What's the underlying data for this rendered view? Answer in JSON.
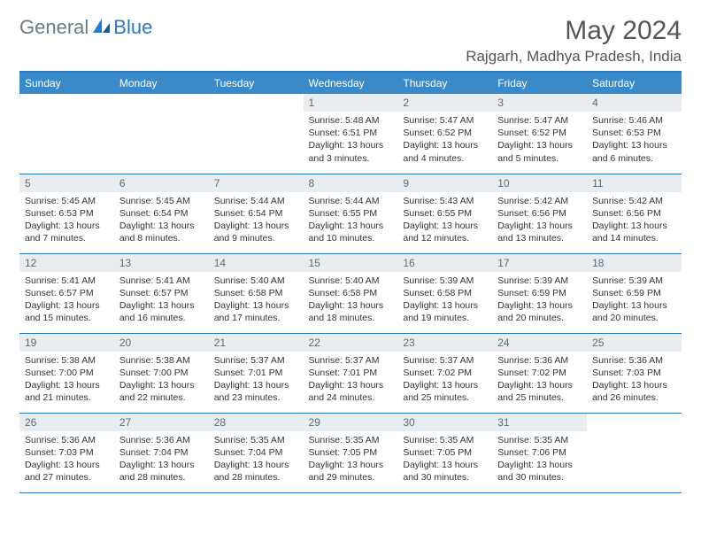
{
  "brand": {
    "general": "General",
    "blue": "Blue"
  },
  "title": "May 2024",
  "location": "Rajgarh, Madhya Pradesh, India",
  "header_color": "#3a8ac9",
  "border_color": "#2b79bf",
  "daynum_bg": "#e9edef",
  "weekdays": [
    "Sunday",
    "Monday",
    "Tuesday",
    "Wednesday",
    "Thursday",
    "Friday",
    "Saturday"
  ],
  "weeks": [
    [
      null,
      null,
      null,
      {
        "n": "1",
        "sr": "Sunrise: 5:48 AM",
        "ss": "Sunset: 6:51 PM",
        "d1": "Daylight: 13 hours",
        "d2": "and 3 minutes."
      },
      {
        "n": "2",
        "sr": "Sunrise: 5:47 AM",
        "ss": "Sunset: 6:52 PM",
        "d1": "Daylight: 13 hours",
        "d2": "and 4 minutes."
      },
      {
        "n": "3",
        "sr": "Sunrise: 5:47 AM",
        "ss": "Sunset: 6:52 PM",
        "d1": "Daylight: 13 hours",
        "d2": "and 5 minutes."
      },
      {
        "n": "4",
        "sr": "Sunrise: 5:46 AM",
        "ss": "Sunset: 6:53 PM",
        "d1": "Daylight: 13 hours",
        "d2": "and 6 minutes."
      }
    ],
    [
      {
        "n": "5",
        "sr": "Sunrise: 5:45 AM",
        "ss": "Sunset: 6:53 PM",
        "d1": "Daylight: 13 hours",
        "d2": "and 7 minutes."
      },
      {
        "n": "6",
        "sr": "Sunrise: 5:45 AM",
        "ss": "Sunset: 6:54 PM",
        "d1": "Daylight: 13 hours",
        "d2": "and 8 minutes."
      },
      {
        "n": "7",
        "sr": "Sunrise: 5:44 AM",
        "ss": "Sunset: 6:54 PM",
        "d1": "Daylight: 13 hours",
        "d2": "and 9 minutes."
      },
      {
        "n": "8",
        "sr": "Sunrise: 5:44 AM",
        "ss": "Sunset: 6:55 PM",
        "d1": "Daylight: 13 hours",
        "d2": "and 10 minutes."
      },
      {
        "n": "9",
        "sr": "Sunrise: 5:43 AM",
        "ss": "Sunset: 6:55 PM",
        "d1": "Daylight: 13 hours",
        "d2": "and 12 minutes."
      },
      {
        "n": "10",
        "sr": "Sunrise: 5:42 AM",
        "ss": "Sunset: 6:56 PM",
        "d1": "Daylight: 13 hours",
        "d2": "and 13 minutes."
      },
      {
        "n": "11",
        "sr": "Sunrise: 5:42 AM",
        "ss": "Sunset: 6:56 PM",
        "d1": "Daylight: 13 hours",
        "d2": "and 14 minutes."
      }
    ],
    [
      {
        "n": "12",
        "sr": "Sunrise: 5:41 AM",
        "ss": "Sunset: 6:57 PM",
        "d1": "Daylight: 13 hours",
        "d2": "and 15 minutes."
      },
      {
        "n": "13",
        "sr": "Sunrise: 5:41 AM",
        "ss": "Sunset: 6:57 PM",
        "d1": "Daylight: 13 hours",
        "d2": "and 16 minutes."
      },
      {
        "n": "14",
        "sr": "Sunrise: 5:40 AM",
        "ss": "Sunset: 6:58 PM",
        "d1": "Daylight: 13 hours",
        "d2": "and 17 minutes."
      },
      {
        "n": "15",
        "sr": "Sunrise: 5:40 AM",
        "ss": "Sunset: 6:58 PM",
        "d1": "Daylight: 13 hours",
        "d2": "and 18 minutes."
      },
      {
        "n": "16",
        "sr": "Sunrise: 5:39 AM",
        "ss": "Sunset: 6:58 PM",
        "d1": "Daylight: 13 hours",
        "d2": "and 19 minutes."
      },
      {
        "n": "17",
        "sr": "Sunrise: 5:39 AM",
        "ss": "Sunset: 6:59 PM",
        "d1": "Daylight: 13 hours",
        "d2": "and 20 minutes."
      },
      {
        "n": "18",
        "sr": "Sunrise: 5:39 AM",
        "ss": "Sunset: 6:59 PM",
        "d1": "Daylight: 13 hours",
        "d2": "and 20 minutes."
      }
    ],
    [
      {
        "n": "19",
        "sr": "Sunrise: 5:38 AM",
        "ss": "Sunset: 7:00 PM",
        "d1": "Daylight: 13 hours",
        "d2": "and 21 minutes."
      },
      {
        "n": "20",
        "sr": "Sunrise: 5:38 AM",
        "ss": "Sunset: 7:00 PM",
        "d1": "Daylight: 13 hours",
        "d2": "and 22 minutes."
      },
      {
        "n": "21",
        "sr": "Sunrise: 5:37 AM",
        "ss": "Sunset: 7:01 PM",
        "d1": "Daylight: 13 hours",
        "d2": "and 23 minutes."
      },
      {
        "n": "22",
        "sr": "Sunrise: 5:37 AM",
        "ss": "Sunset: 7:01 PM",
        "d1": "Daylight: 13 hours",
        "d2": "and 24 minutes."
      },
      {
        "n": "23",
        "sr": "Sunrise: 5:37 AM",
        "ss": "Sunset: 7:02 PM",
        "d1": "Daylight: 13 hours",
        "d2": "and 25 minutes."
      },
      {
        "n": "24",
        "sr": "Sunrise: 5:36 AM",
        "ss": "Sunset: 7:02 PM",
        "d1": "Daylight: 13 hours",
        "d2": "and 25 minutes."
      },
      {
        "n": "25",
        "sr": "Sunrise: 5:36 AM",
        "ss": "Sunset: 7:03 PM",
        "d1": "Daylight: 13 hours",
        "d2": "and 26 minutes."
      }
    ],
    [
      {
        "n": "26",
        "sr": "Sunrise: 5:36 AM",
        "ss": "Sunset: 7:03 PM",
        "d1": "Daylight: 13 hours",
        "d2": "and 27 minutes."
      },
      {
        "n": "27",
        "sr": "Sunrise: 5:36 AM",
        "ss": "Sunset: 7:04 PM",
        "d1": "Daylight: 13 hours",
        "d2": "and 28 minutes."
      },
      {
        "n": "28",
        "sr": "Sunrise: 5:35 AM",
        "ss": "Sunset: 7:04 PM",
        "d1": "Daylight: 13 hours",
        "d2": "and 28 minutes."
      },
      {
        "n": "29",
        "sr": "Sunrise: 5:35 AM",
        "ss": "Sunset: 7:05 PM",
        "d1": "Daylight: 13 hours",
        "d2": "and 29 minutes."
      },
      {
        "n": "30",
        "sr": "Sunrise: 5:35 AM",
        "ss": "Sunset: 7:05 PM",
        "d1": "Daylight: 13 hours",
        "d2": "and 30 minutes."
      },
      {
        "n": "31",
        "sr": "Sunrise: 5:35 AM",
        "ss": "Sunset: 7:06 PM",
        "d1": "Daylight: 13 hours",
        "d2": "and 30 minutes."
      },
      null
    ]
  ]
}
